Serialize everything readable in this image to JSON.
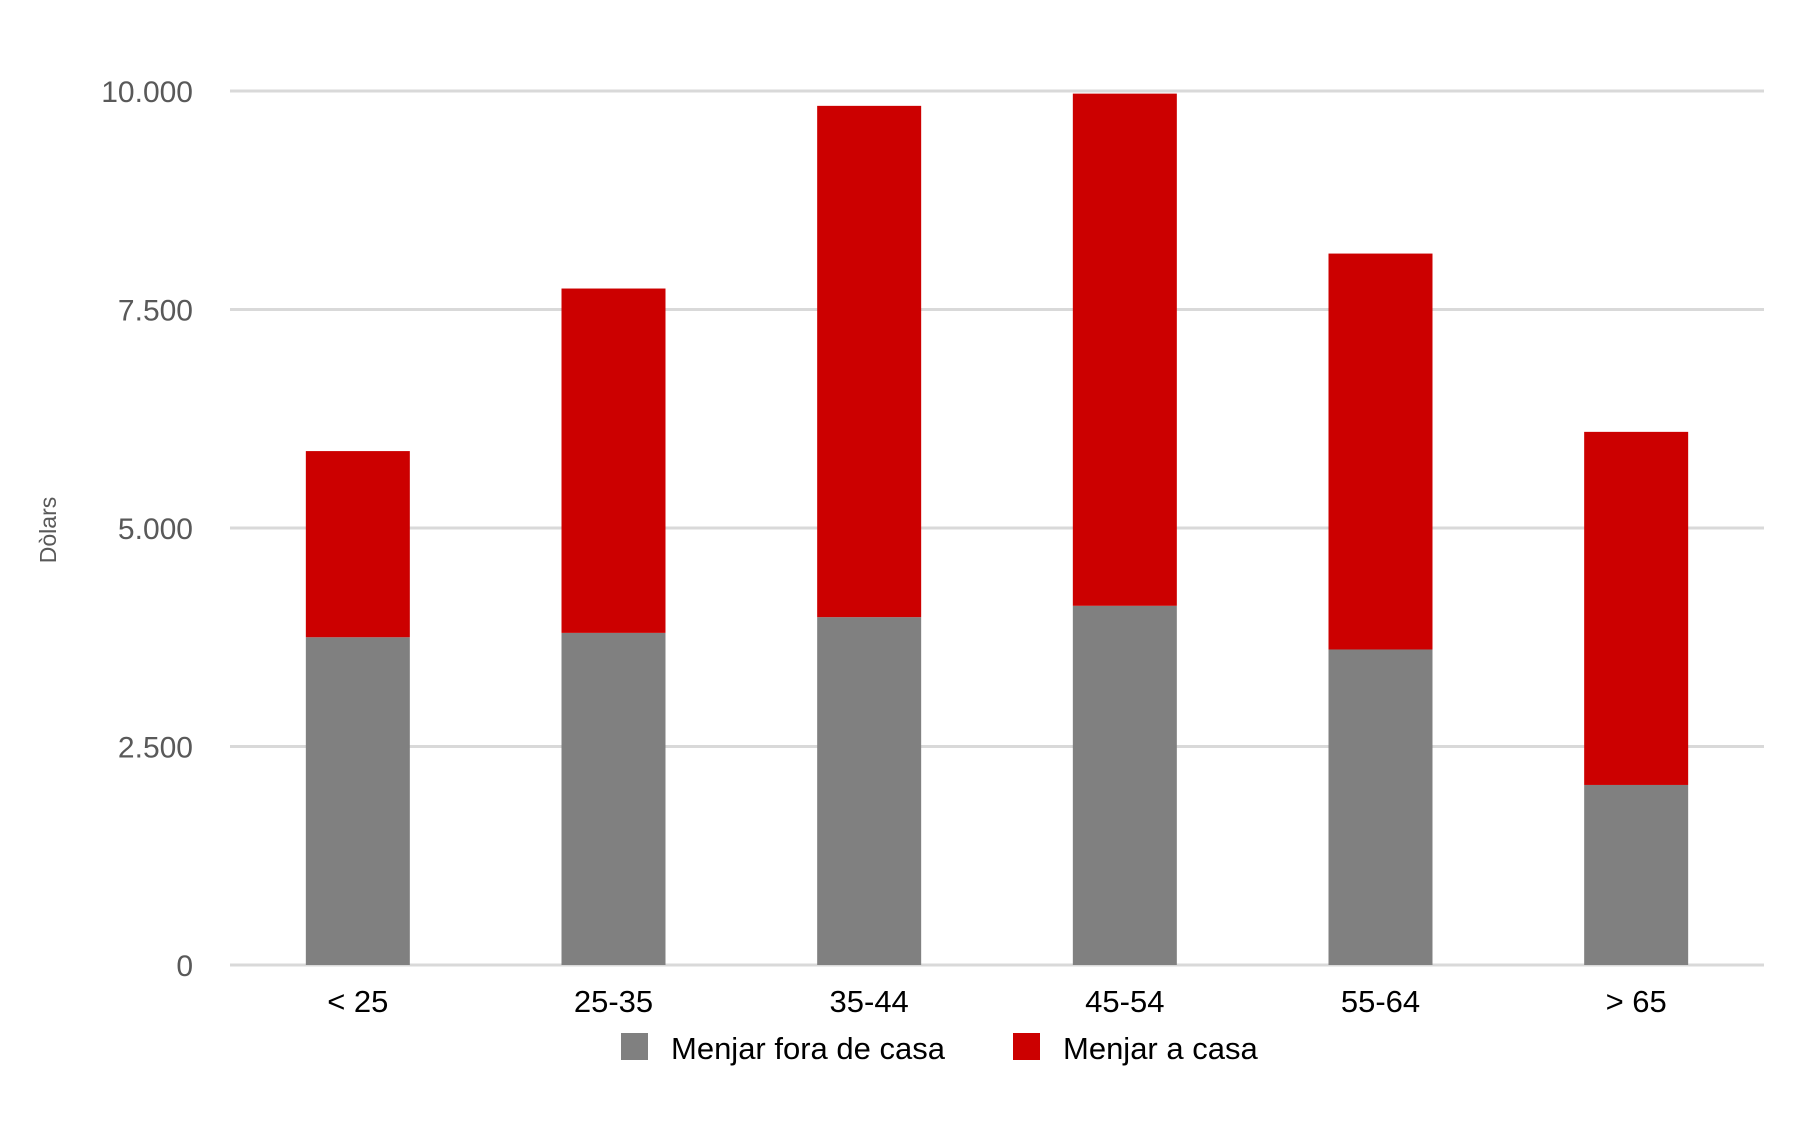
{
  "chart_data": {
    "type": "bar",
    "stacked": true,
    "categories": [
      "< 25",
      "25-35",
      "35-44",
      "45-54",
      "55-64",
      "> 65"
    ],
    "series": [
      {
        "name": "Menjar fora de casa",
        "color": "#808080",
        "values": [
          3750,
          3800,
          3980,
          4110,
          3610,
          2060
        ]
      },
      {
        "name": "Menjar a casa",
        "color": "#cc0000",
        "values": [
          2130,
          3940,
          5850,
          5860,
          4530,
          4040
        ]
      }
    ],
    "ylabel": "Dòlars",
    "xlabel": "",
    "ylim": [
      0,
      10000
    ],
    "yticks": [
      0,
      2500,
      5000,
      7500,
      10000
    ],
    "ytick_labels": [
      "0",
      "2.500",
      "5.000",
      "7.500",
      "10.000"
    ],
    "grid": true,
    "gridline_color": "#d9d9d9",
    "legend_position": "bottom"
  }
}
